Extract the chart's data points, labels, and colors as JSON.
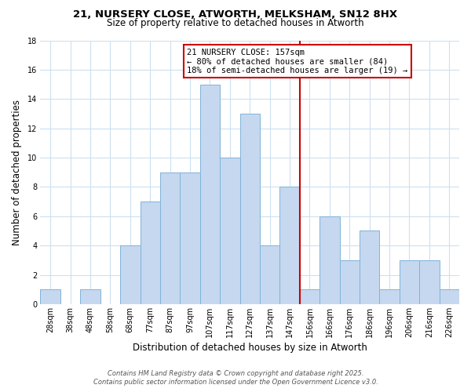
{
  "title": "21, NURSERY CLOSE, ATWORTH, MELKSHAM, SN12 8HX",
  "subtitle": "Size of property relative to detached houses in Atworth",
  "xlabel": "Distribution of detached houses by size in Atworth",
  "ylabel": "Number of detached properties",
  "bin_labels": [
    "28sqm",
    "38sqm",
    "48sqm",
    "58sqm",
    "68sqm",
    "77sqm",
    "87sqm",
    "97sqm",
    "107sqm",
    "117sqm",
    "127sqm",
    "137sqm",
    "147sqm",
    "156sqm",
    "166sqm",
    "176sqm",
    "186sqm",
    "196sqm",
    "206sqm",
    "216sqm",
    "226sqm"
  ],
  "bar_heights": [
    1,
    0,
    1,
    0,
    4,
    7,
    9,
    9,
    15,
    10,
    13,
    4,
    8,
    1,
    6,
    3,
    5,
    1,
    3,
    3,
    1
  ],
  "bar_color": "#c5d8f0",
  "bar_edge_color": "#7fb3d8",
  "highlight_line_color": "#cc0000",
  "highlight_line_index": 13,
  "annotation_line1": "21 NURSERY CLOSE: 157sqm",
  "annotation_line2": "← 80% of detached houses are smaller (84)",
  "annotation_line3": "18% of semi-detached houses are larger (19) →",
  "annotation_box_color": "#ffffff",
  "annotation_box_edge": "#cc0000",
  "ylim": [
    0,
    18
  ],
  "yticks": [
    0,
    2,
    4,
    6,
    8,
    10,
    12,
    14,
    16,
    18
  ],
  "footer_line1": "Contains HM Land Registry data © Crown copyright and database right 2025.",
  "footer_line2": "Contains public sector information licensed under the Open Government Licence v3.0.",
  "bg_color": "#ffffff",
  "grid_color": "#cce0f0",
  "title_fontsize": 9.5,
  "subtitle_fontsize": 8.5,
  "axis_label_fontsize": 8.5,
  "tick_fontsize": 7,
  "annotation_fontsize": 7.5,
  "footer_fontsize": 6
}
